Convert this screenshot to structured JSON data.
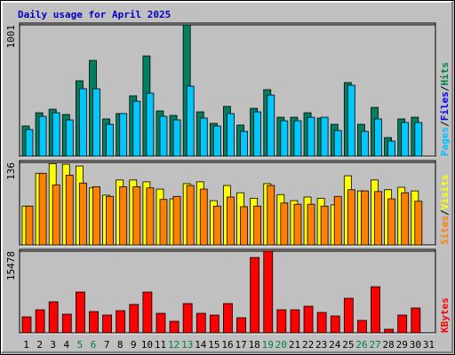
{
  "title": "Daily usage for April 2025",
  "categories": [
    "1",
    "2",
    "3",
    "4",
    "5",
    "6",
    "7",
    "8",
    "9",
    "10",
    "11",
    "12",
    "13",
    "14",
    "15",
    "16",
    "17",
    "18",
    "19",
    "20",
    "21",
    "22",
    "23",
    "24",
    "25",
    "26",
    "27",
    "28",
    "29",
    "30",
    "31"
  ],
  "category_colors": [
    "#000000",
    "#000000",
    "#000000",
    "#000000",
    "#008040",
    "#008040",
    "#000000",
    "#000000",
    "#000000",
    "#000000",
    "#000000",
    "#008040",
    "#008040",
    "#000000",
    "#000000",
    "#000000",
    "#000000",
    "#000000",
    "#008040",
    "#008040",
    "#000000",
    "#000000",
    "#000000",
    "#000000",
    "#000000",
    "#008040",
    "#008040",
    "#000000",
    "#000000",
    "#000000",
    "#000000"
  ],
  "chart_data": [
    {
      "type": "bar",
      "ylim": [
        0,
        1001
      ],
      "yticks": [
        1001
      ],
      "legend": [
        {
          "name": "Pages",
          "color": "#00c0ff"
        },
        {
          "name": "Files",
          "color": "#0000ff"
        },
        {
          "name": "Hits",
          "color": "#008040"
        }
      ],
      "series": [
        {
          "name": "Hits",
          "color": "#008060",
          "values": [
            230,
            331,
            358,
            318,
            575,
            730,
            284,
            325,
            460,
            764,
            345,
            311,
            1001,
            338,
            250,
            379,
            237,
            365,
            507,
            297,
            297,
            331,
            291,
            243,
            561,
            243,
            372,
            142,
            284,
            297,
            null
          ]
        },
        {
          "name": "Files",
          "color": "#00c8ff",
          "values": [
            203,
            304,
            331,
            277,
            514,
            514,
            243,
            325,
            419,
            480,
            304,
            277,
            534,
            291,
            230,
            325,
            189,
            338,
            466,
            270,
            270,
            297,
            297,
            196,
            541,
            189,
            284,
            115,
            257,
            257,
            null
          ]
        }
      ]
    },
    {
      "type": "bar",
      "ylim": [
        0,
        136
      ],
      "yticks": [
        136
      ],
      "legend": [
        {
          "name": "Sites",
          "color": "#ff8000"
        },
        {
          "name": "Visits",
          "color": "#ffff00"
        }
      ],
      "series": [
        {
          "name": "Visits",
          "color": "#ffff00",
          "values": [
            64,
            118,
            134,
            133,
            130,
            94,
            82,
            107,
            107,
            104,
            92,
            76,
            101,
            104,
            73,
            98,
            86,
            77,
            101,
            83,
            73,
            79,
            77,
            66,
            114,
            89,
            107,
            91,
            95,
            89,
            null
          ]
        },
        {
          "name": "Sites",
          "color": "#ff8000",
          "values": [
            64,
            118,
            99,
            115,
            102,
            96,
            80,
            96,
            96,
            94,
            75,
            80,
            98,
            92,
            64,
            79,
            63,
            64,
            98,
            69,
            67,
            67,
            64,
            80,
            91,
            89,
            88,
            76,
            86,
            72,
            null
          ]
        }
      ]
    },
    {
      "type": "bar",
      "ylim": [
        0,
        15478
      ],
      "yticks": [
        15478
      ],
      "legend": [
        {
          "name": "KBytes",
          "color": "#ff0000"
        }
      ],
      "series": [
        {
          "name": "KBytes",
          "color": "#ff0000",
          "values": [
            3024,
            4368,
            5880,
            3528,
            7728,
            4032,
            3360,
            4200,
            5376,
            7728,
            3696,
            2184,
            5544,
            3696,
            3360,
            5544,
            2856,
            14280,
            15478,
            4368,
            4368,
            5040,
            3864,
            3192,
            6552,
            2352,
            8736,
            672,
            3360,
            4704,
            null
          ]
        }
      ]
    }
  ]
}
